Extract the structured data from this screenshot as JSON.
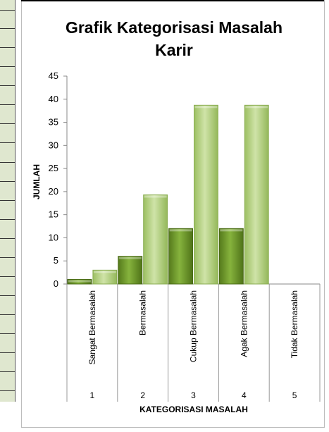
{
  "chart_data": {
    "type": "bar",
    "title_lines": [
      "Grafik Kategorisasi Masalah",
      "Karir"
    ],
    "ylabel": "JUMLAH",
    "xlabel": "KATEGORISASI MASALAH",
    "ylim": [
      0,
      45
    ],
    "yticks": [
      0,
      5,
      10,
      15,
      20,
      25,
      30,
      35,
      40,
      45
    ],
    "categories": [
      "Sangat Bermasalah",
      "Bermasalah",
      "Cukup Bermasalah",
      "Agak Bermasalah",
      "Tidak Bermasalah"
    ],
    "category_numbers": [
      "1",
      "2",
      "3",
      "4",
      "5"
    ],
    "series": [
      {
        "values": [
          1,
          6,
          12,
          12,
          0
        ],
        "color": "#6e9a2a"
      },
      {
        "values": [
          3,
          19.3,
          38.7,
          38.7,
          0
        ],
        "color": "#b2cf79"
      }
    ],
    "grid": false,
    "legend": "none"
  }
}
